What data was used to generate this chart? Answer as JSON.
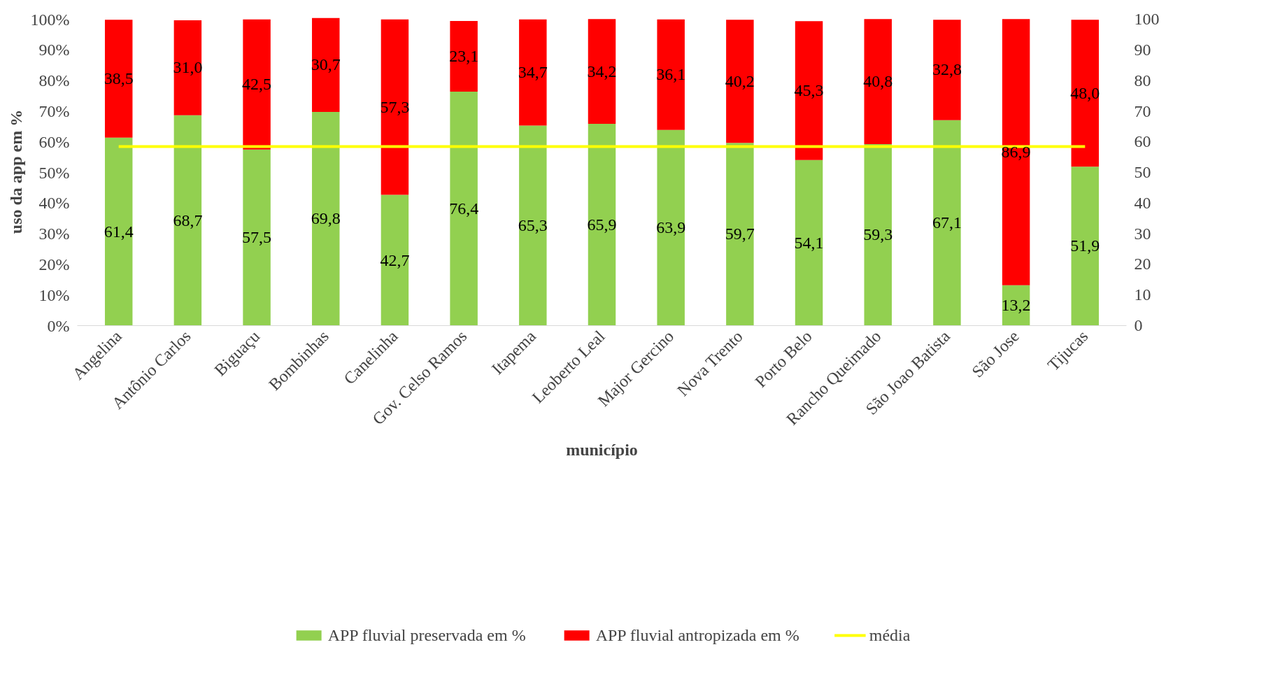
{
  "chart_data": {
    "type": "bar",
    "stacked": true,
    "xlabel": "município",
    "ylabel": "uso da app em %",
    "categories": [
      "Angelina",
      "Antônio Carlos",
      "Biguaçu",
      "Bombinhas",
      "Canelinha",
      "Gov. Celso Ramos",
      "Itapema",
      "Leoberto Leal",
      "Major Gercino",
      "Nova Trento",
      "Porto Belo",
      "Rancho Queimado",
      "São Joao Batista",
      "São Jose",
      "Tijucas"
    ],
    "series": [
      {
        "name": "APP fluvial preservada em %",
        "color": "#92d050",
        "values": [
          61.4,
          68.7,
          57.5,
          69.8,
          42.7,
          76.4,
          65.3,
          65.9,
          63.9,
          59.7,
          54.1,
          59.3,
          67.1,
          13.2,
          51.9
        ],
        "value_labels": [
          "61,4",
          "68,7",
          "57,5",
          "69,8",
          "42,7",
          "76,4",
          "65,3",
          "65,9",
          "63,9",
          "59,7",
          "54,1",
          "59,3",
          "67,1",
          "13,2",
          "51,9"
        ]
      },
      {
        "name": "APP fluvial antropizada em %",
        "color": "#ff0000",
        "values": [
          38.5,
          31.0,
          42.5,
          30.7,
          57.3,
          23.1,
          34.7,
          34.2,
          36.1,
          40.2,
          45.3,
          40.8,
          32.8,
          86.9,
          48.0
        ],
        "value_labels": [
          "38,5",
          "31,0",
          "42,5",
          "30,7",
          "57,3",
          "23,1",
          "34,7",
          "34,2",
          "36,1",
          "40,2",
          "45,3",
          "40,8",
          "32,8",
          "86,9",
          "48,0"
        ]
      },
      {
        "name": "média",
        "type": "line",
        "color": "#ffff00",
        "values": [
          58.5,
          58.5,
          58.5,
          58.5,
          58.5,
          58.5,
          58.5,
          58.5,
          58.5,
          58.5,
          58.5,
          58.5,
          58.5,
          58.5,
          58.5
        ]
      }
    ],
    "ylim": [
      0,
      100.5
    ],
    "yticks": [
      {
        "value": 0,
        "label": "0%"
      },
      {
        "value": 10,
        "label": "10%"
      },
      {
        "value": 20,
        "label": "20%"
      },
      {
        "value": 30,
        "label": "30%"
      },
      {
        "value": 40,
        "label": "40%"
      },
      {
        "value": 50,
        "label": "50%"
      },
      {
        "value": 60,
        "label": "60%"
      },
      {
        "value": 70,
        "label": "70%"
      },
      {
        "value": 80,
        "label": "80%"
      },
      {
        "value": 90,
        "label": "90%"
      },
      {
        "value": 100,
        "label": "100%"
      }
    ],
    "y2lim": [
      0,
      100.5
    ],
    "y2ticks": [
      0,
      10,
      20,
      30,
      40,
      50,
      60,
      70,
      80,
      90,
      100
    ],
    "legend": "bottom",
    "grid": false
  }
}
